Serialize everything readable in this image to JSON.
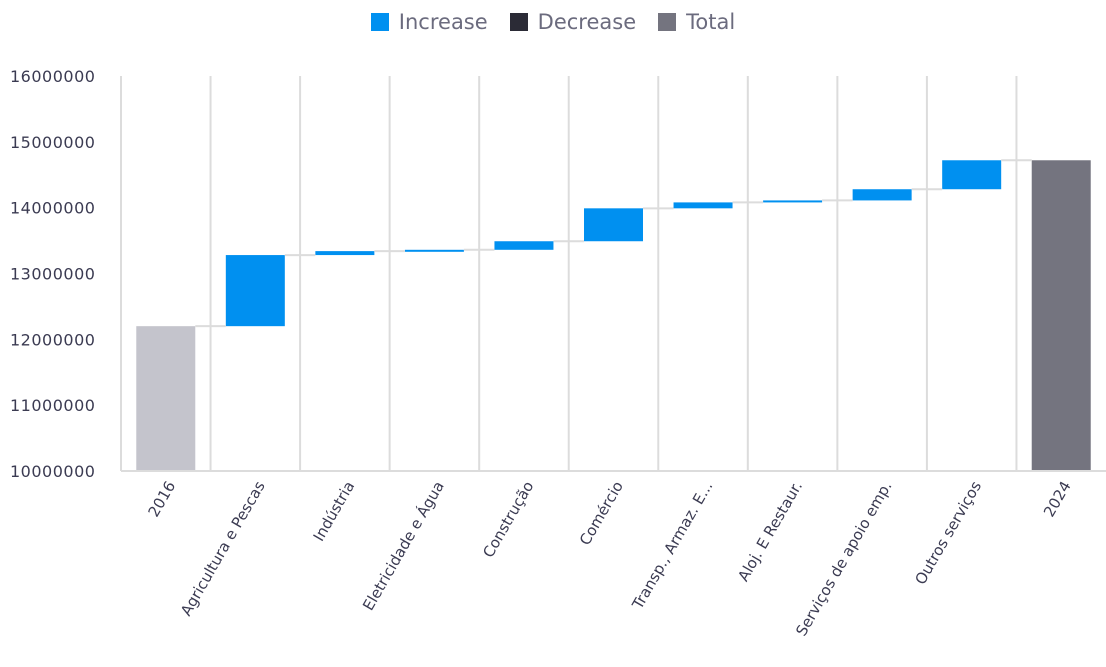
{
  "legend": [
    {
      "label": "Increase",
      "color": "#0090f0"
    },
    {
      "label": "Decrease",
      "color": "#2b2b36"
    },
    {
      "label": "Total",
      "color": "#74747f"
    }
  ],
  "chart_data": {
    "type": "waterfall",
    "categories": [
      "2016",
      "Agricultura e Pescas",
      "Indústria",
      "Eletricidade e Água",
      "Construção",
      "Comércio",
      "Transp., Armaz. E...",
      "Aloj. E Restaur.",
      "Serviços de apoio emp.",
      "Outros serviços",
      "2024"
    ],
    "values": [
      12200000,
      1080000,
      60000,
      20000,
      130000,
      500000,
      90000,
      30000,
      170000,
      440000,
      14720000
    ],
    "kinds": [
      "start",
      "increase",
      "increase",
      "increase",
      "increase",
      "increase",
      "increase",
      "increase",
      "increase",
      "increase",
      "total"
    ],
    "ylim": [
      10000000,
      16000000
    ],
    "yticks": [
      "10000000",
      "11000000",
      "12000000",
      "13000000",
      "14000000",
      "15000000",
      "16000000"
    ],
    "colors": {
      "start": "#c4c4cc",
      "increase": "#0090f0",
      "decrease": "#2b2b36",
      "total": "#74747f",
      "grid": "#dcdcdc",
      "text": "#3b3b52"
    },
    "grid": true,
    "legend_position": "top"
  }
}
